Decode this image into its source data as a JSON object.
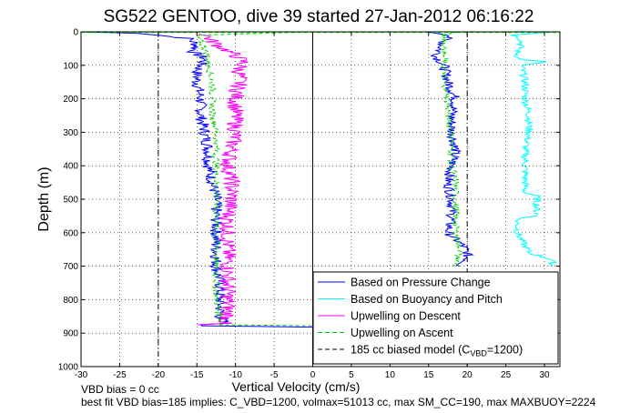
{
  "chart_data": {
    "type": "line",
    "title": "SG522 GENTOO, dive 39 started 27-Jan-2012 06:16:22",
    "xlabel": "Vertical Velocity (cm/s)",
    "ylabel": "Depth (m)",
    "xlim": [
      -30,
      32
    ],
    "ylim": [
      1000,
      0
    ],
    "yaxis_reversed": true,
    "grid": true,
    "x_ticks": [
      -30,
      -25,
      -20,
      -15,
      -10,
      -5,
      0,
      5,
      10,
      15,
      20,
      25,
      30
    ],
    "y_ticks": [
      0,
      100,
      200,
      300,
      400,
      500,
      600,
      700,
      800,
      900,
      1000
    ],
    "legend_position": "bottom-right",
    "reference_lines": [
      {
        "x": -20,
        "style": "dash-dot",
        "color": "#000000"
      },
      {
        "x": 0,
        "style": "solid",
        "color": "#000000"
      },
      {
        "x": 20,
        "style": "dash-dot",
        "color": "#000000"
      }
    ],
    "series": [
      {
        "name": "Based on Pressure Change",
        "color": "#0000ff",
        "style": "solid",
        "noise": 0.8,
        "depth": [
          0,
          5,
          20,
          40,
          60,
          80,
          100,
          120,
          150,
          200,
          250,
          300,
          350,
          400,
          450,
          500,
          550,
          600,
          650,
          700,
          750,
          800,
          850,
          870,
          878,
          882
        ],
        "x": [
          -30,
          -22,
          -16,
          -15,
          -15.5,
          -14,
          -14.5,
          -15,
          -15,
          -14.5,
          -14.5,
          -14,
          -13.5,
          -13.5,
          -13,
          -12.5,
          -12.5,
          -12.5,
          -12.5,
          -12.5,
          -12,
          -12,
          -12,
          -11.5,
          -15,
          0
        ]
      },
      {
        "name": "Based on Pressure Change",
        "color": "#0000ff",
        "style": "solid",
        "noise": 0.7,
        "depth": [
          0,
          10,
          25,
          50,
          75,
          100,
          150,
          200,
          250,
          300,
          350,
          400,
          450,
          500,
          550,
          600,
          620,
          640,
          660,
          680,
          700
        ],
        "x": [
          15,
          18,
          17,
          16.5,
          16,
          17,
          17.5,
          18.5,
          18,
          18,
          18.5,
          18,
          17.5,
          18,
          18,
          17.5,
          18.5,
          19.5,
          20,
          20,
          19
        ]
      },
      {
        "name": "Based on Buoyancy and Pitch",
        "color": "#00ffff",
        "style": "solid",
        "noise": 0.5,
        "depth": [
          0,
          10,
          20,
          40,
          60,
          80,
          90,
          100,
          150,
          200,
          250,
          300,
          350,
          400,
          450,
          480,
          490,
          520,
          550,
          560,
          600,
          620,
          640,
          660,
          680,
          700
        ],
        "x": [
          31,
          26,
          27,
          27,
          26.5,
          26.5,
          30,
          27,
          27.5,
          27.5,
          28,
          28,
          27.5,
          27.5,
          27.5,
          27.5,
          29,
          29,
          29,
          26.5,
          26.5,
          27,
          27.5,
          28,
          31,
          31
        ]
      },
      {
        "name": "Upwelling on Descent",
        "color": "#ff00ff",
        "style": "solid",
        "noise": 1.1,
        "depth": [
          5,
          30,
          50,
          70,
          90,
          110,
          150,
          200,
          250,
          300,
          350,
          400,
          450,
          500,
          550,
          600,
          650,
          700,
          750,
          800,
          850,
          870,
          875
        ],
        "x": [
          -14,
          -13,
          -11.5,
          -10,
          -9,
          -9.5,
          -9.5,
          -10,
          -10,
          -10,
          -10.5,
          -11,
          -10.5,
          -10.5,
          -11,
          -11,
          -11,
          -11,
          -11,
          -11,
          -11,
          -11.5,
          -15
        ]
      },
      {
        "name": "Upwelling on Ascent",
        "color": "#00cc00",
        "style": "dashed",
        "noise": 0.45,
        "depth": [
          0,
          10,
          30,
          50,
          80,
          100,
          150,
          200,
          250,
          300,
          350,
          400,
          450,
          500,
          550,
          600,
          650,
          700,
          750,
          800,
          850,
          875,
          878
        ],
        "x": [
          0,
          -15,
          -14.5,
          -14,
          -13.5,
          -13.5,
          -13,
          -13,
          -13,
          -12.5,
          -12.5,
          -12.5,
          -12.5,
          -12.5,
          -12.5,
          -12.5,
          -12.5,
          -12.5,
          -12.5,
          -12.5,
          -12,
          -12,
          0
        ]
      },
      {
        "name": "Upwelling on Ascent",
        "color": "#00cc00",
        "style": "dashed",
        "noise": 0.45,
        "depth": [
          0,
          10,
          50,
          100,
          150,
          200,
          250,
          300,
          350,
          400,
          450,
          500,
          550,
          600,
          650,
          700
        ],
        "x": [
          19,
          17,
          17,
          17,
          17,
          17.5,
          17.5,
          18,
          18,
          18,
          18.5,
          18.5,
          18.5,
          18.5,
          19,
          18.5
        ]
      },
      {
        "name": "185 cc biased model (C_VBD=1200)",
        "color": "#00ff00",
        "style": "dashed",
        "noise": 0,
        "depth": [
          2,
          2
        ],
        "x": [
          -30,
          32
        ]
      }
    ],
    "legend": [
      {
        "label": "Based on Pressure Change",
        "color": "#0000ff",
        "style": "solid"
      },
      {
        "label": "Based on Buoyancy and Pitch",
        "color": "#00ffff",
        "style": "solid"
      },
      {
        "label": "Upwelling on Descent",
        "color": "#ff00ff",
        "style": "solid"
      },
      {
        "label": "Upwelling on Ascent",
        "color": "#00cc00",
        "style": "dashed"
      },
      {
        "label_main": "185 cc biased model (C",
        "label_sub": "VBD",
        "label_tail": "=1200)",
        "color": "#000000",
        "style": "dashed"
      }
    ],
    "annotations": [
      "VBD bias = 0 cc",
      "best fit VBD bias=185 implies: C_VBD=1200, volmax=51013 cc, max SM_CC=190, max MAXBUOY=2224"
    ]
  }
}
